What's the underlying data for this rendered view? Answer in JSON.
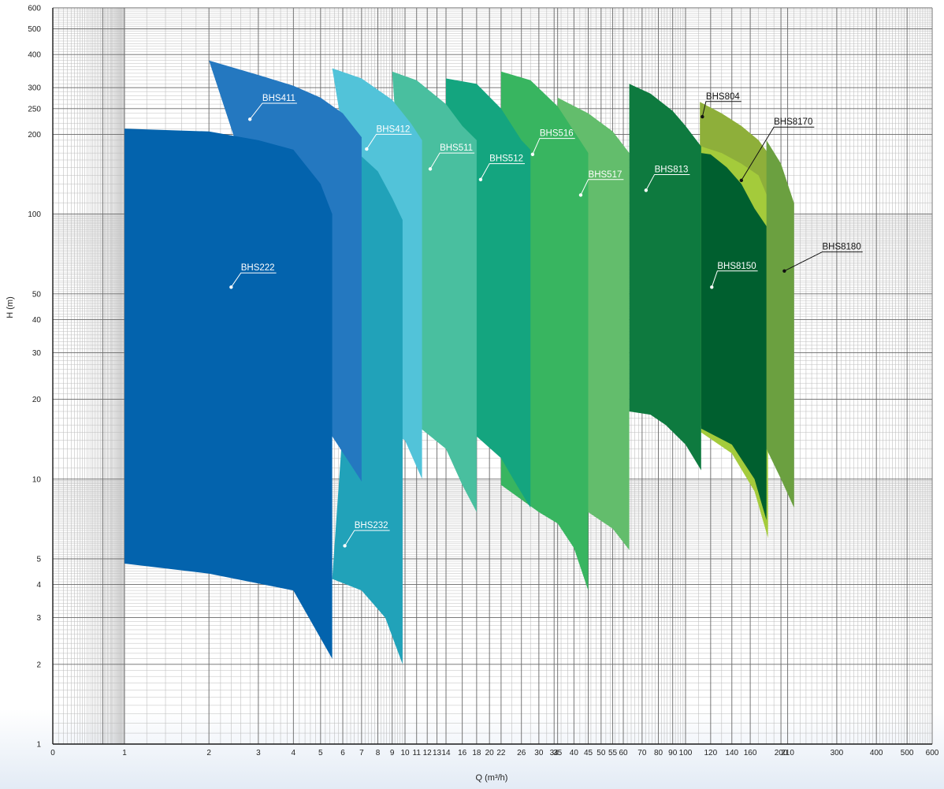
{
  "chart_data": {
    "type": "area",
    "xlabel": "Q (m³/h)",
    "ylabel": "H (m)",
    "x_scale": "log",
    "y_scale": "log",
    "grid": true,
    "xlim": [
      0,
      600
    ],
    "ylim": [
      1,
      600
    ],
    "x_ticks": [
      "0",
      "1",
      "2",
      "3",
      "4",
      "5",
      "6",
      "7",
      "8",
      "9",
      "10",
      "11",
      "12",
      "13",
      "14",
      "16",
      "18",
      "20",
      "22",
      "26",
      "30",
      "34",
      "35",
      "40",
      "45",
      "50",
      "55",
      "60",
      "70",
      "80",
      "90",
      "100",
      "120",
      "140",
      "160",
      "200",
      "210",
      "300",
      "400",
      "500",
      "600"
    ],
    "x_tick_values": [
      0.5,
      1,
      2,
      3,
      4,
      5,
      6,
      7,
      8,
      9,
      10,
      11,
      12,
      13,
      14,
      16,
      18,
      20,
      22,
      26,
      30,
      34,
      35,
      40,
      45,
      50,
      55,
      60,
      70,
      80,
      90,
      100,
      120,
      140,
      160,
      200,
      210,
      300,
      400,
      500,
      600
    ],
    "y_ticks": [
      "1",
      "2",
      "3",
      "4",
      "5",
      "10",
      "20",
      "30",
      "40",
      "50",
      "100",
      "200",
      "250",
      "300",
      "400",
      "500",
      "600"
    ],
    "y_tick_values": [
      1,
      2,
      3,
      4,
      5,
      10,
      20,
      30,
      40,
      50,
      100,
      200,
      250,
      300,
      400,
      500,
      600
    ],
    "series": [
      {
        "name": "BHS804",
        "color": "#8eaf3a",
        "label_color": "#111111",
        "top": [
          [
            111,
            265
          ],
          [
            130,
            240
          ],
          [
            150,
            215
          ],
          [
            170,
            190
          ],
          [
            182,
            170
          ]
        ],
        "bottom": [
          [
            182,
            6.5
          ],
          [
            165,
            10
          ],
          [
            140,
            13.5
          ],
          [
            111,
            16
          ]
        ]
      },
      {
        "name": "BHS8170",
        "color": "#a4cb3b",
        "label_color": "#111111",
        "top": [
          [
            112,
            180
          ],
          [
            130,
            170
          ],
          [
            150,
            155
          ],
          [
            170,
            140
          ],
          [
            182,
            115
          ]
        ],
        "bottom": [
          [
            182,
            6
          ],
          [
            165,
            9
          ],
          [
            140,
            12.5
          ],
          [
            112,
            15
          ]
        ]
      },
      {
        "name": "BHS8180",
        "color": "#6ba040",
        "label_color": "#111111",
        "top": [
          [
            180,
            190
          ],
          [
            200,
            155
          ],
          [
            220,
            110
          ]
        ],
        "bottom": [
          [
            220,
            7.8
          ],
          [
            200,
            10
          ],
          [
            180,
            13
          ]
        ]
      },
      {
        "name": "BHS8150",
        "color": "#005f2f",
        "label_color": "#ffffff",
        "top": [
          [
            112,
            170
          ],
          [
            120,
            168
          ],
          [
            135,
            150
          ],
          [
            150,
            130
          ],
          [
            165,
            105
          ],
          [
            180,
            90
          ]
        ],
        "bottom": [
          [
            180,
            7
          ],
          [
            165,
            10
          ],
          [
            140,
            13.5
          ],
          [
            112,
            15.5
          ]
        ]
      },
      {
        "name": "BHS813",
        "color": "#0e7a3f",
        "label_color": "#ffffff",
        "top": [
          [
            63,
            310
          ],
          [
            75,
            285
          ],
          [
            90,
            245
          ],
          [
            100,
            215
          ],
          [
            112,
            180
          ]
        ],
        "bottom": [
          [
            112,
            10.8
          ],
          [
            100,
            13.5
          ],
          [
            85,
            16
          ],
          [
            75,
            17.5
          ],
          [
            63,
            18
          ]
        ]
      },
      {
        "name": "BHS517",
        "color": "#63bd6c",
        "label_color": "#ffffff",
        "top": [
          [
            35,
            275
          ],
          [
            45,
            240
          ],
          [
            55,
            205
          ],
          [
            63,
            170
          ]
        ],
        "bottom": [
          [
            63,
            5.4
          ],
          [
            55,
            6.5
          ],
          [
            45,
            7.5
          ],
          [
            35,
            8
          ]
        ]
      },
      {
        "name": "BHS516",
        "color": "#38b560",
        "label_color": "#ffffff",
        "top": [
          [
            22,
            345
          ],
          [
            28,
            320
          ],
          [
            35,
            255
          ],
          [
            42,
            190
          ],
          [
            45,
            170
          ]
        ],
        "bottom": [
          [
            45,
            3.8
          ],
          [
            40,
            5.5
          ],
          [
            35,
            6.8
          ],
          [
            30,
            7.5
          ],
          [
            22,
            9.5
          ]
        ]
      },
      {
        "name": "BHS512",
        "color": "#14a57f",
        "label_color": "#ffffff",
        "top": [
          [
            14,
            325
          ],
          [
            18,
            310
          ],
          [
            22,
            250
          ],
          [
            26,
            190
          ],
          [
            28,
            175
          ]
        ],
        "bottom": [
          [
            28,
            7.8
          ],
          [
            25,
            9.5
          ],
          [
            22,
            12
          ],
          [
            18,
            14.5
          ],
          [
            14,
            15.5
          ]
        ]
      },
      {
        "name": "BHS511",
        "color": "#49bf9f",
        "label_color": "#ffffff",
        "top": [
          [
            9,
            345
          ],
          [
            11,
            320
          ],
          [
            14,
            260
          ],
          [
            16,
            215
          ],
          [
            18,
            190
          ]
        ],
        "bottom": [
          [
            18,
            7.5
          ],
          [
            16,
            9.5
          ],
          [
            14,
            13
          ],
          [
            11,
            16
          ]
        ]
      },
      {
        "name": "BHS412",
        "color": "#52c3d9",
        "label_color": "#ffffff",
        "top": [
          [
            5.5,
            355
          ],
          [
            7,
            325
          ],
          [
            9,
            270
          ],
          [
            10.5,
            220
          ],
          [
            11.5,
            190
          ]
        ],
        "bottom": [
          [
            11.5,
            10
          ],
          [
            10,
            14
          ],
          [
            9,
            15
          ]
        ]
      },
      {
        "name": "BHS232",
        "color": "#21a2b9",
        "label_color": "#ffffff",
        "top": [
          [
            7,
            165
          ],
          [
            8,
            145
          ],
          [
            9,
            115
          ],
          [
            9.8,
            95
          ]
        ],
        "bottom": [
          [
            9.8,
            2
          ],
          [
            8.5,
            3
          ],
          [
            7,
            3.8
          ],
          [
            5.5,
            4.2
          ]
        ]
      },
      {
        "name": "BHS411",
        "color": "#2478c0",
        "label_color": "#ffffff",
        "top": [
          [
            2,
            380
          ],
          [
            3,
            335
          ],
          [
            4,
            305
          ],
          [
            5,
            275
          ],
          [
            6,
            240
          ],
          [
            7,
            195
          ]
        ],
        "bottom": [
          [
            7,
            9.8
          ],
          [
            5.5,
            14.5
          ]
        ]
      },
      {
        "name": "BHS222",
        "color": "#0363ad",
        "label_color": "#ffffff",
        "top": [
          [
            1,
            210
          ],
          [
            2,
            205
          ],
          [
            3,
            190
          ],
          [
            4,
            175
          ],
          [
            5,
            130
          ],
          [
            5.5,
            100
          ]
        ],
        "bottom": [
          [
            5.5,
            2.1
          ],
          [
            4,
            3.8
          ],
          [
            2,
            4.4
          ],
          [
            1,
            4.8
          ]
        ]
      }
    ],
    "labels": [
      {
        "series": "BHS222",
        "point": [
          2.4,
          53
        ],
        "text_x": 2.6,
        "text_y": 60
      },
      {
        "series": "BHS411",
        "point": [
          2.8,
          228
        ],
        "text_x": 3.1,
        "text_y": 262
      },
      {
        "series": "BHS412",
        "point": [
          7.3,
          176
        ],
        "text_x": 7.9,
        "text_y": 200
      },
      {
        "series": "BHS232",
        "point": [
          6.1,
          5.6
        ],
        "text_x": 6.6,
        "text_y": 6.4
      },
      {
        "series": "BHS511",
        "point": [
          12.3,
          148
        ],
        "text_x": 13.3,
        "text_y": 170
      },
      {
        "series": "BHS512",
        "point": [
          18.6,
          135
        ],
        "text_x": 20.0,
        "text_y": 155
      },
      {
        "series": "BHS516",
        "point": [
          28.5,
          168
        ],
        "text_x": 30.2,
        "text_y": 193
      },
      {
        "series": "BHS517",
        "point": [
          42.3,
          118
        ],
        "text_x": 45.0,
        "text_y": 135
      },
      {
        "series": "BHS813",
        "point": [
          72.3,
          123
        ],
        "text_x": 77.5,
        "text_y": 141
      },
      {
        "series": "BHS804",
        "point": [
          113,
          233
        ],
        "text_x": 116,
        "text_y": 266
      },
      {
        "series": "BHS8170",
        "point": [
          150,
          134
        ],
        "text_x": 190,
        "text_y": 213
      },
      {
        "series": "BHS8180",
        "point": [
          205,
          61
        ],
        "text_x": 270,
        "text_y": 72
      },
      {
        "series": "BHS8150",
        "point": [
          121,
          53
        ],
        "text_x": 126,
        "text_y": 61
      }
    ]
  }
}
